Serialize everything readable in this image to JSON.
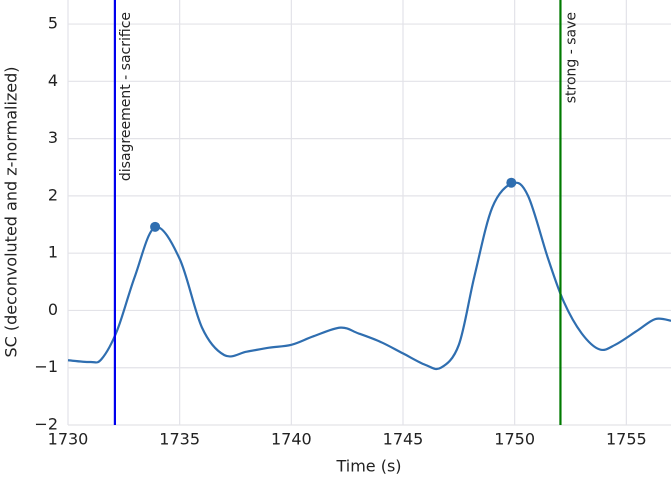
{
  "chart_data": {
    "type": "line",
    "xlabel": "Time (s)",
    "ylabel": "SC (deconvoluted and z-normalized)",
    "x": [
      1730,
      1731,
      1731.5,
      1732.2,
      1733,
      1733.9,
      1735,
      1736,
      1737,
      1738,
      1739,
      1740,
      1741,
      1742.2,
      1743,
      1744,
      1745,
      1746,
      1746.7,
      1747.5,
      1748.2,
      1749,
      1749.9,
      1750.6,
      1751.5,
      1752.2,
      1753,
      1753.8,
      1754.5,
      1755.5,
      1756.3,
      1757
    ],
    "series": [
      {
        "color": "#2f6eb0",
        "values": [
          -0.87,
          -0.9,
          -0.85,
          -0.35,
          0.6,
          1.45,
          0.9,
          -0.3,
          -0.78,
          -0.72,
          -0.65,
          -0.6,
          -0.45,
          -0.3,
          -0.4,
          -0.55,
          -0.75,
          -0.95,
          -1.0,
          -0.6,
          0.6,
          1.8,
          2.22,
          2.0,
          0.9,
          0.15,
          -0.4,
          -0.68,
          -0.6,
          -0.35,
          -0.15,
          -0.18
        ]
      }
    ],
    "markers": {
      "x": [
        1733.9,
        1749.85
      ],
      "values": [
        1.46,
        2.23
      ],
      "color": "#2f6eb0"
    },
    "vlines": [
      {
        "x": 1732.1,
        "label": "disagreement - sacrifice",
        "color": "#0000ee"
      },
      {
        "x": 1752.05,
        "label": "strong - save",
        "color": "#007a00"
      }
    ],
    "xlim": [
      1730,
      1757
    ],
    "ylim": [
      -2,
      5.42
    ],
    "xticks": [
      1730,
      1735,
      1740,
      1745,
      1750,
      1755
    ],
    "yticks": [
      {
        "value": -2,
        "label": "−2"
      },
      {
        "value": -1,
        "label": "−1"
      },
      0,
      1,
      2,
      3,
      4,
      5
    ],
    "grid": true
  }
}
